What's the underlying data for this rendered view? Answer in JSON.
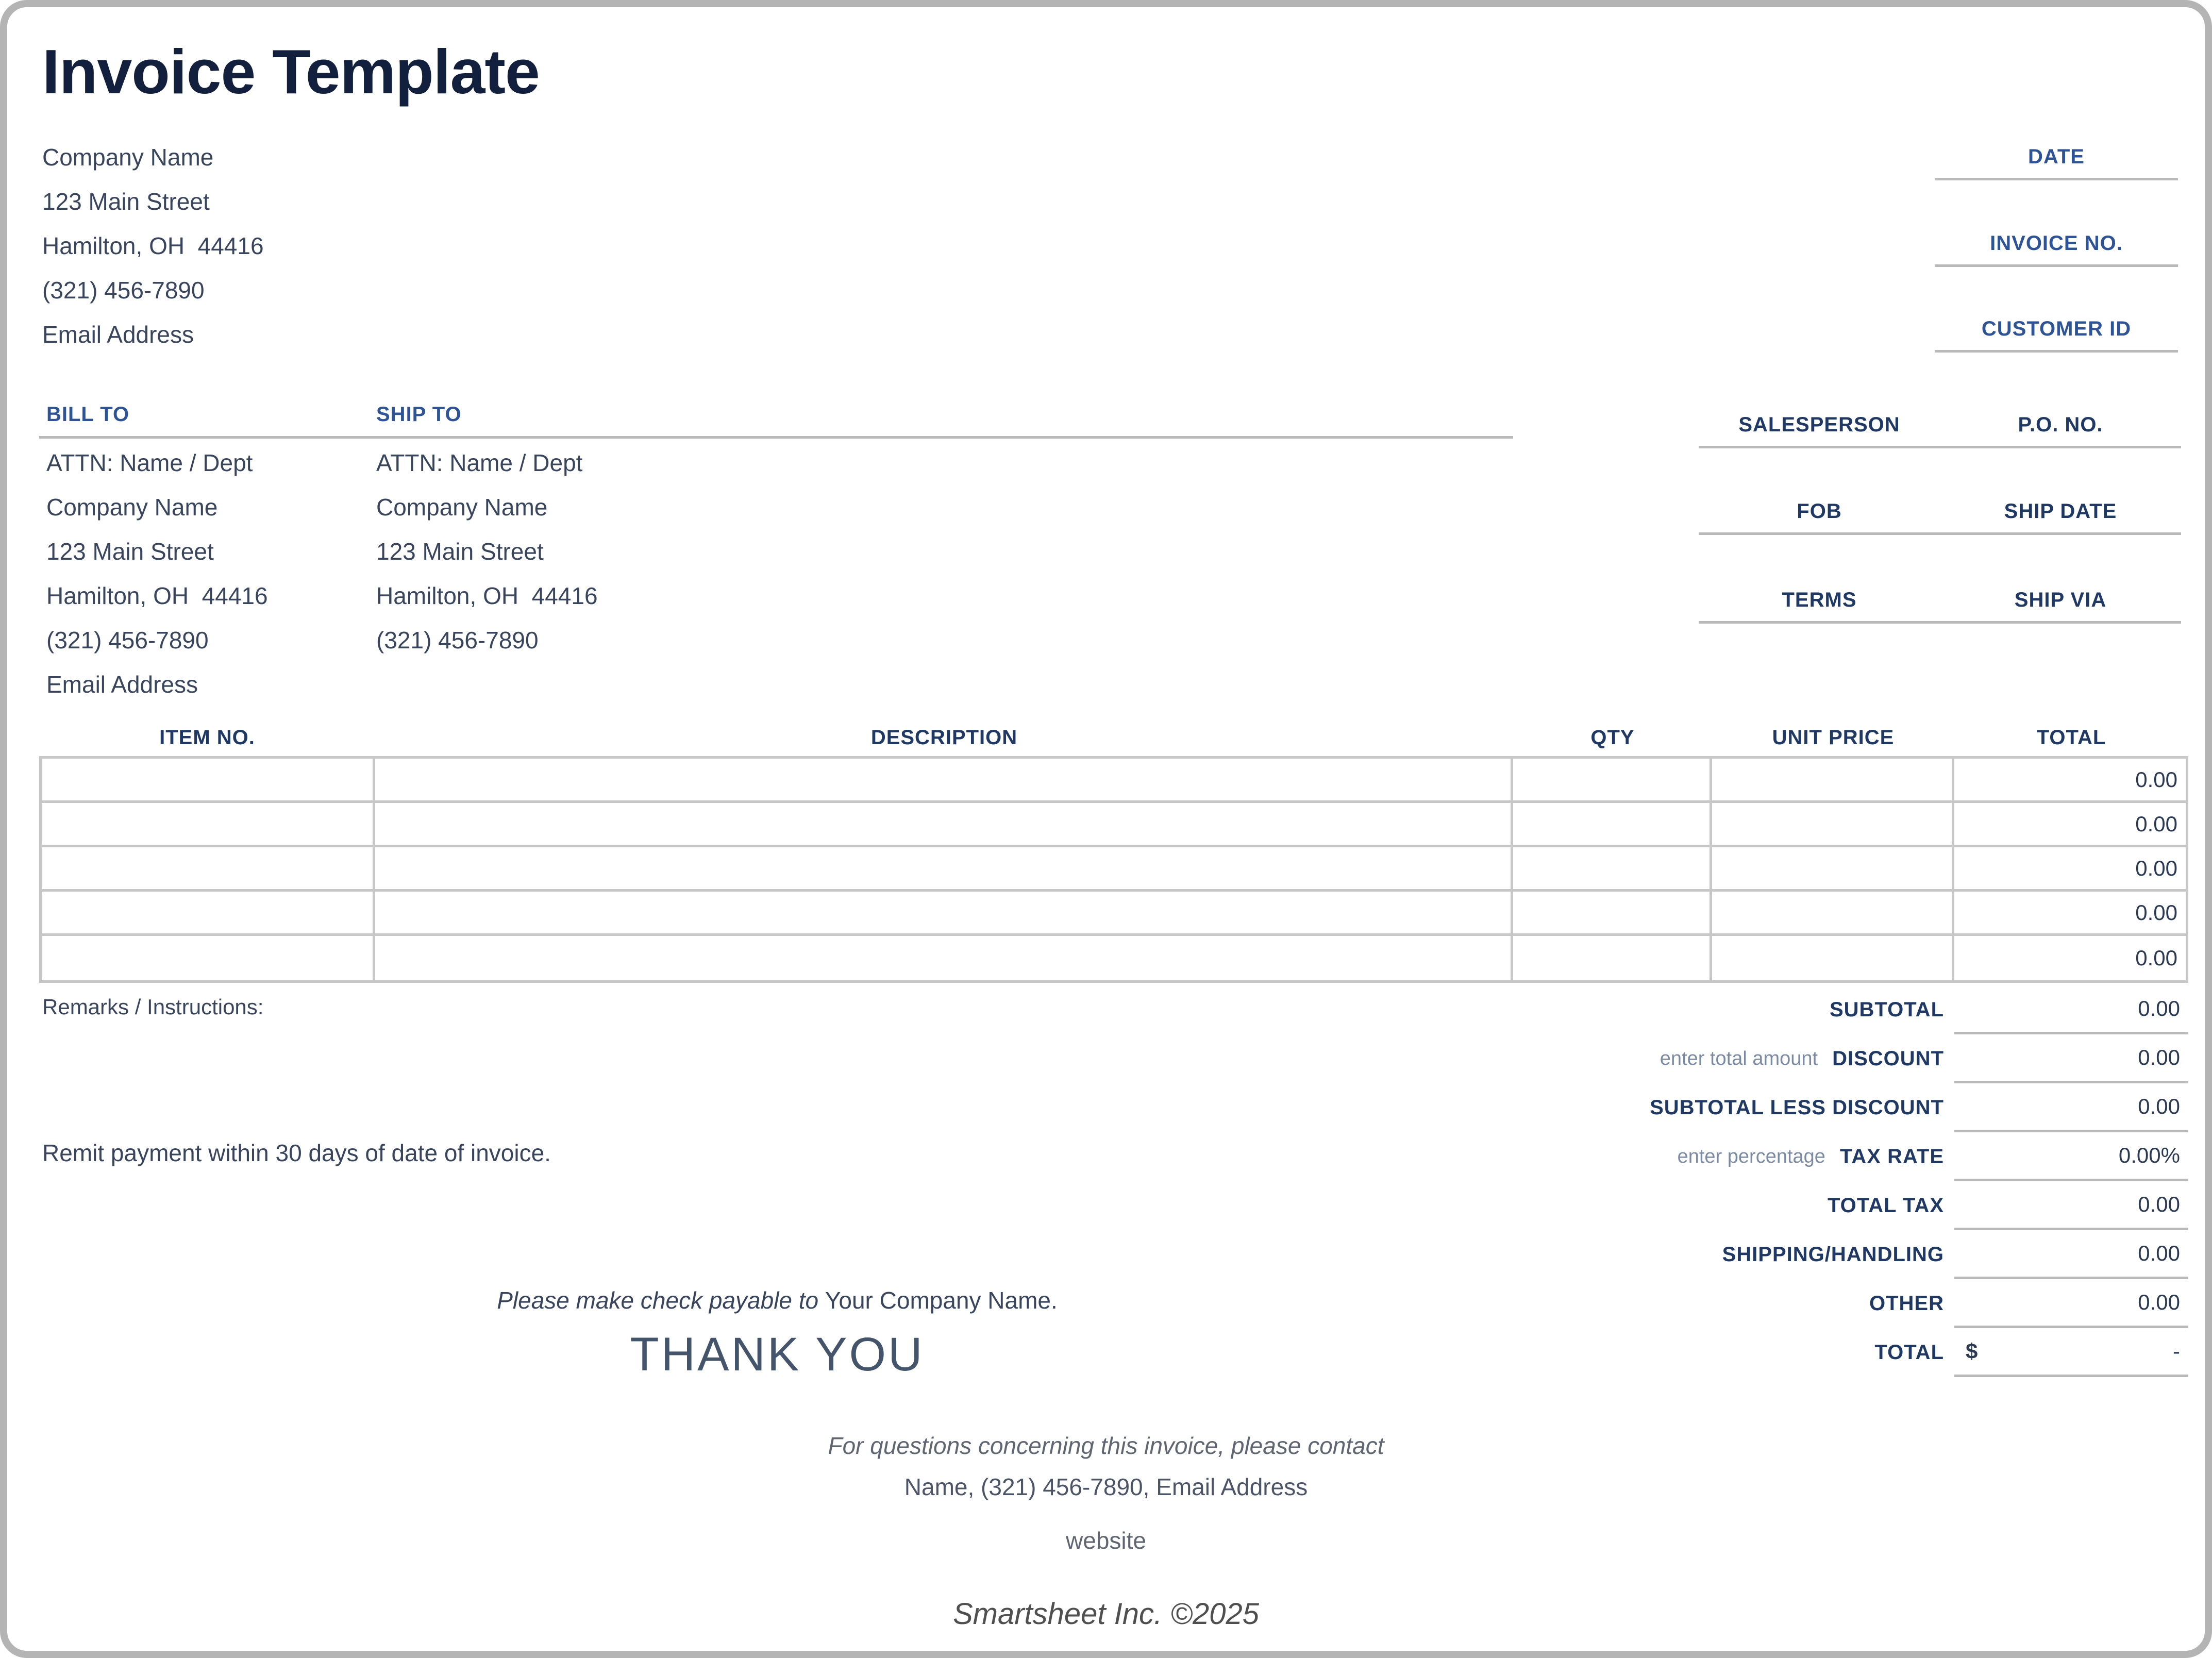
{
  "title": "Invoice Template",
  "company": {
    "name": "Company Name",
    "street": "123 Main Street",
    "city": "Hamilton, OH  44416",
    "phone": "(321) 456-7890",
    "email": "Email Address"
  },
  "invoice_meta": {
    "date_label": "DATE",
    "invoice_no_label": "INVOICE NO.",
    "customer_id_label": "CUSTOMER ID"
  },
  "bill_to": {
    "heading": "BILL TO",
    "lines": [
      "ATTN: Name / Dept",
      "Company Name",
      "123 Main Street",
      "Hamilton, OH  44416",
      "(321) 456-7890",
      "Email Address"
    ]
  },
  "ship_to": {
    "heading": "SHIP TO",
    "lines": [
      "ATTN: Name / Dept",
      "Company Name",
      "123 Main Street",
      "Hamilton, OH  44416",
      "(321) 456-7890"
    ]
  },
  "order_meta": [
    {
      "left": "SALESPERSON",
      "right": "P.O. NO."
    },
    {
      "left": "FOB",
      "right": "SHIP DATE"
    },
    {
      "left": "TERMS",
      "right": "SHIP VIA"
    }
  ],
  "items_table": {
    "headers": [
      "ITEM NO.",
      "DESCRIPTION",
      "QTY",
      "UNIT PRICE",
      "TOTAL"
    ],
    "rows": [
      {
        "item_no": "",
        "description": "",
        "qty": "",
        "unit_price": "",
        "total": "0.00"
      },
      {
        "item_no": "",
        "description": "",
        "qty": "",
        "unit_price": "",
        "total": "0.00"
      },
      {
        "item_no": "",
        "description": "",
        "qty": "",
        "unit_price": "",
        "total": "0.00"
      },
      {
        "item_no": "",
        "description": "",
        "qty": "",
        "unit_price": "",
        "total": "0.00"
      },
      {
        "item_no": "",
        "description": "",
        "qty": "",
        "unit_price": "",
        "total": "0.00"
      }
    ]
  },
  "remarks_label": "Remarks / Instructions:",
  "payment_note": "Remit payment within 30 days of date of invoice.",
  "totals": [
    {
      "helper": "",
      "label": "SUBTOTAL",
      "value": "0.00"
    },
    {
      "helper": "enter total amount",
      "label": "DISCOUNT",
      "value": "0.00"
    },
    {
      "helper": "",
      "label": "SUBTOTAL LESS DISCOUNT",
      "value": "0.00"
    },
    {
      "helper": "enter percentage",
      "label": "TAX RATE",
      "value": "0.00%"
    },
    {
      "helper": "",
      "label": "TOTAL TAX",
      "value": "0.00"
    },
    {
      "helper": "",
      "label": "SHIPPING/HANDLING",
      "value": "0.00"
    },
    {
      "helper": "",
      "label": "OTHER",
      "value": "0.00"
    },
    {
      "helper": "",
      "label": "TOTAL",
      "currency": "$",
      "value": "-"
    }
  ],
  "check_note": {
    "prefix": "Please make check payable to ",
    "payee": "Your Company Name."
  },
  "thank_you": "THANK YOU",
  "footer": {
    "contact_line1": "For questions concerning this invoice, please contact",
    "contact_line2": "Name, (321) 456-7890, Email Address",
    "website": "website",
    "copyright": "Smartsheet Inc. ©2025"
  },
  "colors": {
    "title": "#121f3d",
    "blue_label": "#2f5496",
    "navy_label": "#1f3864",
    "body_text": "#39455c",
    "helper_text": "#7a8aa3",
    "line_gray": "#b9b9b9",
    "table_border": "#c7c7c7",
    "page_border": "#b4b4b4"
  }
}
